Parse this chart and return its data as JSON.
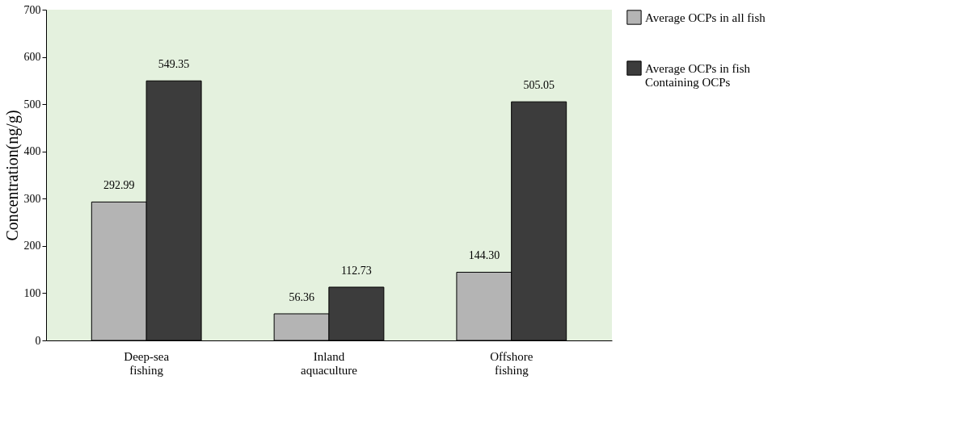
{
  "chart_data": {
    "type": "bar",
    "ylabel": "Concentration(ng/g)",
    "categories": [
      "Deep-sea\nfishing",
      "Inland\naquaculture",
      "Offshore\nfishing"
    ],
    "series": [
      {
        "name": "Average OCPs in all fish",
        "color": "#b4b4b4",
        "values": [
          292.99,
          56.36,
          144.3
        ],
        "value_labels": [
          "292.99",
          "56.36",
          "144.30"
        ]
      },
      {
        "name": "Average OCPs in  fish\nContaining OCPs",
        "color": "#3c3c3c",
        "values": [
          549.35,
          112.73,
          505.05
        ],
        "value_labels": [
          "549.35",
          "112.73",
          "505.05"
        ]
      }
    ],
    "ylim": [
      0,
      700
    ],
    "yticks": [
      0,
      100,
      200,
      300,
      400,
      500,
      600,
      700
    ],
    "grid": false,
    "legend": "right"
  }
}
